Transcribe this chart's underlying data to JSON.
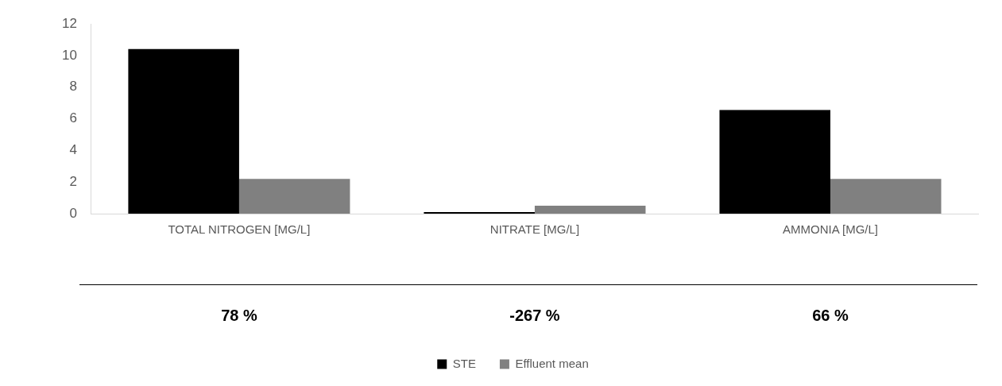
{
  "chart_data": {
    "type": "bar",
    "categories": [
      "TOTAL NITROGEN [MG/L]",
      "NITRATE [MG/L]",
      "AMMONIA [MG/L]"
    ],
    "series": [
      {
        "name": "STE",
        "color": "#000000",
        "values": [
          10.4,
          0.1,
          6.55
        ]
      },
      {
        "name": "Effluent mean",
        "color": "#808080",
        "values": [
          2.2,
          0.5,
          2.2
        ]
      }
    ],
    "ylim": [
      0,
      12
    ],
    "yticks": [
      0,
      2,
      4,
      6,
      8,
      10,
      12
    ],
    "grid": false,
    "legend": "bottom",
    "annotations": [
      "78 %",
      "-267 %",
      "66 %"
    ]
  }
}
